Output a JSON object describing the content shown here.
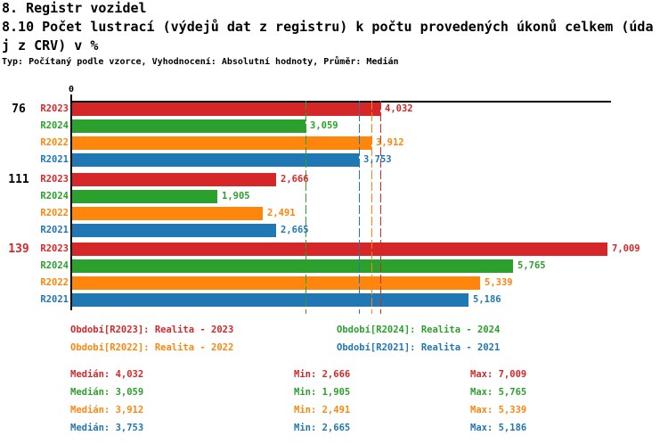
{
  "header": {
    "title": "8. Registr vozidel",
    "subtitle_line1": "8.10 Počet lustrací (výdejů dat z registru) k počtu provedených úkonů celkem (úda",
    "subtitle_line2": "j z CRV) v %",
    "meta": "Typ: Počítaný podle vzorce, Vyhodnocení: Absolutní hodnoty, Průměr: Medián"
  },
  "chart_data": {
    "type": "bar",
    "orientation": "horizontal",
    "grid": false,
    "legend_position": "bottom",
    "x_axis": {
      "tick_label": "0",
      "origin": 0,
      "approx_max": 7009
    },
    "series": [
      {
        "name": "R2023",
        "color": "#d62728",
        "legend": "Období[R2023]: Realita - 2023",
        "median": 4032,
        "min": 2666,
        "max": 7009
      },
      {
        "name": "R2024",
        "color": "#2ca02c",
        "legend": "Období[R2024]: Realita - 2024",
        "median": 3059,
        "min": 1905,
        "max": 5765
      },
      {
        "name": "R2022",
        "color": "#ff860d",
        "legend": "Období[R2022]: Realita - 2022",
        "median": 3912,
        "min": 2491,
        "max": 5339
      },
      {
        "name": "R2021",
        "color": "#1f77b4",
        "legend": "Období[R2021]: Realita - 2021",
        "median": 3753,
        "min": 2665,
        "max": 5186
      }
    ],
    "groups": [
      {
        "label": "76",
        "label_color": "#000000",
        "values": [
          4032,
          3059,
          3912,
          3753
        ]
      },
      {
        "label": "111",
        "label_color": "#000000",
        "values": [
          2666,
          1905,
          2491,
          2665
        ]
      },
      {
        "label": "139",
        "label_color": "#d62728",
        "values": [
          7009,
          5765,
          5339,
          5186
        ]
      }
    ],
    "median_lines": [
      4032,
      3059,
      3912,
      3753
    ]
  },
  "stats": {
    "median_label": "Medián",
    "min_label": "Min",
    "max_label": "Max"
  }
}
